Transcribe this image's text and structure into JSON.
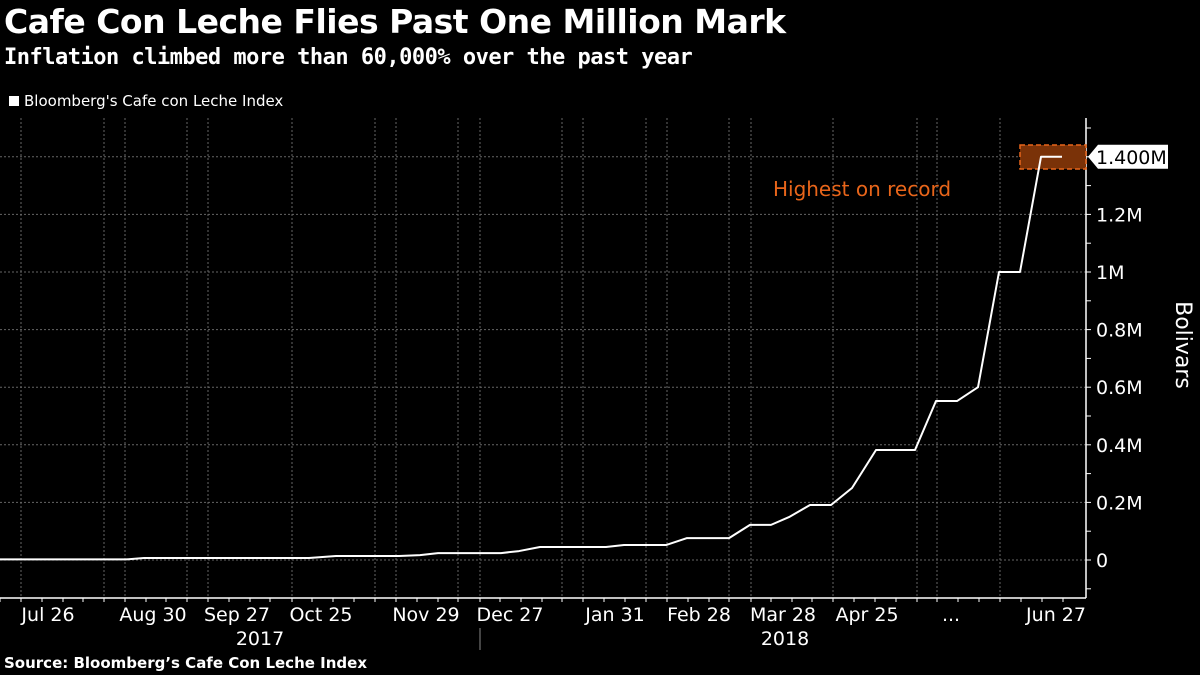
{
  "header": {
    "title": "Cafe Con Leche Flies Past One Million Mark",
    "subtitle": "Inflation climbed more than 60,000% over the past year"
  },
  "footer": {
    "source": "Source: Bloomberg’s Cafe Con Leche Index"
  },
  "colors": {
    "background": "#000000",
    "line": "#ffffff",
    "annotation": "#e8651a",
    "highlight_fill": "#7a3208"
  },
  "chart_data": {
    "type": "line",
    "title": "Cafe Con Leche Flies Past One Million Mark",
    "subtitle": "Inflation climbed more than 60,000% over the past year",
    "legend": {
      "entries": [
        "Bloomberg's Cafe con Leche Index"
      ],
      "placement": "top-left"
    },
    "ylabel": "Bolivars",
    "ylim": [
      -130000,
      1530000
    ],
    "yticks": [
      {
        "value": 0,
        "label": "0"
      },
      {
        "value": 200000,
        "label": "0.2M"
      },
      {
        "value": 400000,
        "label": "0.4M"
      },
      {
        "value": 600000,
        "label": "0.6M"
      },
      {
        "value": 800000,
        "label": "0.8M"
      },
      {
        "value": 1000000,
        "label": "1M"
      },
      {
        "value": 1200000,
        "label": "1.2M"
      }
    ],
    "x_unit": "days since 2017-07-01",
    "xlim": [
      10,
      372
    ],
    "xticks": [
      {
        "day": 25,
        "label": "Jul 26"
      },
      {
        "day": 60,
        "label": "Aug 30"
      },
      {
        "day": 88,
        "label": "Sep 27"
      },
      {
        "day": 116,
        "label": "Oct 25"
      },
      {
        "day": 151,
        "label": "Nov 29"
      },
      {
        "day": 179,
        "label": "Dec 27"
      },
      {
        "day": 214,
        "label": "Jan 31"
      },
      {
        "day": 242,
        "label": "Feb 28"
      },
      {
        "day": 270,
        "label": "Mar 28"
      },
      {
        "day": 298,
        "label": "Apr 25"
      },
      {
        "day": 326,
        "label": "..."
      },
      {
        "day": 361,
        "label": "Jun 27"
      }
    ],
    "years": [
      {
        "day": 95,
        "label": "2017"
      },
      {
        "day": 270,
        "label": "2018"
      }
    ],
    "year_divider_day": 170,
    "series": [
      {
        "name": "Bloomberg's Cafe con Leche Index",
        "x": [
          10,
          52,
          58,
          113,
          122,
          143,
          150,
          156,
          177,
          183,
          190,
          212,
          218,
          232,
          239,
          253,
          260,
          267,
          273,
          280,
          287,
          294,
          302,
          315,
          322,
          329,
          336,
          343,
          350,
          357,
          364
        ],
        "values": [
          2000,
          2000,
          7000,
          7000,
          14000,
          14000,
          17000,
          24000,
          24000,
          31000,
          45000,
          45000,
          52000,
          52000,
          76000,
          76000,
          122000,
          122000,
          149000,
          191000,
          191000,
          250000,
          382000,
          382000,
          552000,
          552000,
          600000,
          1000000,
          1000000,
          1400000,
          1400000
        ]
      }
    ],
    "last_value_label": "1.400M",
    "annotations": [
      {
        "text": "Highest on record",
        "target_value": 1400000
      }
    ],
    "grid": true
  }
}
